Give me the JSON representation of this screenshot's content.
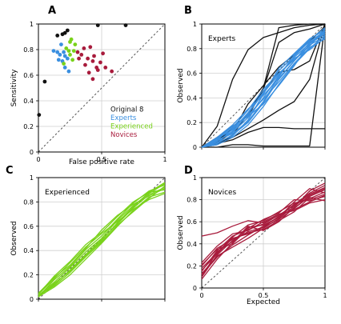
{
  "figure": {
    "panels": {
      "A": {
        "letter": "A"
      },
      "B": {
        "letter": "B"
      },
      "C": {
        "letter": "C"
      },
      "D": {
        "letter": "D"
      }
    },
    "colors": {
      "original8": "#111111",
      "experts": "#3a8fe0",
      "experienced": "#79d21a",
      "novices": "#a81b3c",
      "frame": "#000000",
      "grid": "#cfcfcf",
      "diagonal": "#555555"
    }
  },
  "chart_data": [
    {
      "id": "A",
      "type": "scatter",
      "title": "",
      "xlabel": "False positive rate",
      "ylabel": "Sensitivity",
      "xlim": [
        0,
        1
      ],
      "ylim": [
        0,
        1
      ],
      "xticks": [
        "0",
        "0.5",
        "1"
      ],
      "yticks": [
        "0",
        "0.2",
        "0.4",
        "0.6",
        "0.8",
        "1"
      ],
      "grid": true,
      "diagonal": true,
      "legend": {
        "position": "bottom-right",
        "entries": [
          {
            "label": "Original 8",
            "color": "#111111"
          },
          {
            "label": "Experts",
            "color": "#3a8fe0"
          },
          {
            "label": "Experienced",
            "color": "#79d21a"
          },
          {
            "label": "Novices",
            "color": "#a81b3c"
          }
        ]
      },
      "series": [
        {
          "name": "Original 8",
          "color": "#111111",
          "points": [
            [
              0.005,
              0.29
            ],
            [
              0.05,
              0.55
            ],
            [
              0.15,
              0.91
            ],
            [
              0.19,
              0.92
            ],
            [
              0.21,
              0.93
            ],
            [
              0.23,
              0.95
            ],
            [
              0.47,
              0.99
            ],
            [
              0.69,
              0.99
            ]
          ]
        },
        {
          "name": "Experts",
          "color": "#3a8fe0",
          "points": [
            [
              0.12,
              0.79
            ],
            [
              0.15,
              0.78
            ],
            [
              0.18,
              0.84
            ],
            [
              0.16,
              0.72
            ],
            [
              0.19,
              0.71
            ],
            [
              0.2,
              0.78
            ],
            [
              0.21,
              0.75
            ],
            [
              0.23,
              0.73
            ],
            [
              0.24,
              0.63
            ],
            [
              0.21,
              0.66
            ],
            [
              0.17,
              0.76
            ]
          ]
        },
        {
          "name": "Experienced",
          "color": "#79d21a",
          "points": [
            [
              0.22,
              0.81
            ],
            [
              0.24,
              0.79
            ],
            [
              0.25,
              0.86
            ],
            [
              0.26,
              0.88
            ],
            [
              0.25,
              0.76
            ],
            [
              0.28,
              0.79
            ],
            [
              0.27,
              0.72
            ],
            [
              0.2,
              0.69
            ],
            [
              0.29,
              0.84
            ]
          ]
        },
        {
          "name": "Novices",
          "color": "#a81b3c",
          "points": [
            [
              0.31,
              0.78
            ],
            [
              0.32,
              0.73
            ],
            [
              0.34,
              0.76
            ],
            [
              0.36,
              0.81
            ],
            [
              0.37,
              0.68
            ],
            [
              0.39,
              0.73
            ],
            [
              0.4,
              0.62
            ],
            [
              0.41,
              0.82
            ],
            [
              0.43,
              0.71
            ],
            [
              0.44,
              0.75
            ],
            [
              0.46,
              0.66
            ],
            [
              0.47,
              0.64
            ],
            [
              0.49,
              0.7
            ],
            [
              0.51,
              0.77
            ],
            [
              0.53,
              0.66
            ],
            [
              0.43,
              0.57
            ],
            [
              0.58,
              0.63
            ]
          ]
        }
      ]
    },
    {
      "id": "B",
      "type": "line",
      "title": "",
      "annotation": "Experts",
      "xlabel": "",
      "ylabel": "Observed",
      "xlim": [
        0,
        1
      ],
      "ylim": [
        0,
        1
      ],
      "xticks": [
        "",
        "",
        ""
      ],
      "yticks": [
        "0",
        "0.2",
        "0.4",
        "0.6",
        "0.8",
        "1"
      ],
      "grid": true,
      "diagonal": true,
      "x": [
        0,
        0.125,
        0.25,
        0.375,
        0.5,
        0.625,
        0.75,
        0.875,
        1
      ],
      "series": [
        {
          "group": "Original 8",
          "color": "#111111",
          "values": [
            0.0,
            0.17,
            0.55,
            0.79,
            0.89,
            0.93,
            0.97,
            0.99,
            1.0
          ]
        },
        {
          "group": "Original 8",
          "color": "#111111",
          "values": [
            0.0,
            0.08,
            0.17,
            0.25,
            0.47,
            0.85,
            0.93,
            0.96,
            1.0
          ]
        },
        {
          "group": "Original 8",
          "color": "#111111",
          "values": [
            0.0,
            0.05,
            0.15,
            0.27,
            0.45,
            0.61,
            0.63,
            0.7,
            1.0
          ]
        },
        {
          "group": "Original 8",
          "color": "#111111",
          "values": [
            0.0,
            0.02,
            0.1,
            0.27,
            0.48,
            0.97,
            0.99,
            1.0,
            1.0
          ]
        },
        {
          "group": "Original 8",
          "color": "#111111",
          "values": [
            0.0,
            0.03,
            0.06,
            0.12,
            0.16,
            0.16,
            0.15,
            0.15,
            0.15
          ]
        },
        {
          "group": "Original 8",
          "color": "#111111",
          "values": [
            0.0,
            0.04,
            0.08,
            0.15,
            0.22,
            0.3,
            0.37,
            0.55,
            1.0
          ]
        },
        {
          "group": "Original 8",
          "color": "#111111",
          "values": [
            0.0,
            0.0,
            0.02,
            0.02,
            0.01,
            0.01,
            0.01,
            0.01,
            1.0
          ]
        },
        {
          "group": "Original 8",
          "color": "#111111",
          "values": [
            0.0,
            0.04,
            0.12,
            0.35,
            0.5,
            0.65,
            0.75,
            0.86,
            0.98
          ]
        },
        {
          "group": "Experts",
          "color": "#3a8fe0",
          "values": [
            0.0,
            0.07,
            0.14,
            0.28,
            0.45,
            0.62,
            0.74,
            0.86,
            0.94
          ]
        },
        {
          "group": "Experts",
          "color": "#3a8fe0",
          "values": [
            0.0,
            0.05,
            0.12,
            0.24,
            0.4,
            0.58,
            0.73,
            0.84,
            0.92
          ]
        },
        {
          "group": "Experts",
          "color": "#3a8fe0",
          "values": [
            0.0,
            0.03,
            0.1,
            0.2,
            0.36,
            0.55,
            0.7,
            0.83,
            0.9
          ]
        },
        {
          "group": "Experts",
          "color": "#3a8fe0",
          "values": [
            0.0,
            0.06,
            0.16,
            0.3,
            0.47,
            0.6,
            0.71,
            0.82,
            0.96
          ]
        },
        {
          "group": "Experts",
          "color": "#3a8fe0",
          "values": [
            0.0,
            0.04,
            0.09,
            0.22,
            0.43,
            0.64,
            0.76,
            0.88,
            0.95
          ]
        },
        {
          "group": "Experts",
          "color": "#3a8fe0",
          "values": [
            0.0,
            0.08,
            0.18,
            0.31,
            0.42,
            0.56,
            0.7,
            0.85,
            0.93
          ]
        },
        {
          "group": "Experts",
          "color": "#3a8fe0",
          "values": [
            0.0,
            0.02,
            0.08,
            0.18,
            0.33,
            0.51,
            0.67,
            0.8,
            0.91
          ]
        },
        {
          "group": "Experts",
          "color": "#3a8fe0",
          "values": [
            0.0,
            0.05,
            0.13,
            0.26,
            0.39,
            0.53,
            0.68,
            0.81,
            0.88
          ]
        },
        {
          "group": "Experts",
          "color": "#3a8fe0",
          "values": [
            0.0,
            0.06,
            0.11,
            0.21,
            0.37,
            0.57,
            0.75,
            0.87,
            0.97
          ]
        },
        {
          "group": "Experts",
          "color": "#3a8fe0",
          "values": [
            0.0,
            0.03,
            0.15,
            0.27,
            0.44,
            0.59,
            0.72,
            0.79,
            0.89
          ]
        },
        {
          "group": "Experts",
          "color": "#3a8fe0",
          "values": [
            0.0,
            0.07,
            0.17,
            0.25,
            0.35,
            0.5,
            0.66,
            0.84,
            0.94
          ]
        }
      ]
    },
    {
      "id": "C",
      "type": "line",
      "title": "",
      "annotation": "Experienced",
      "xlabel": "",
      "ylabel": "Observed",
      "xlim": [
        0,
        1
      ],
      "ylim": [
        0,
        1
      ],
      "xticks": [
        "",
        "",
        ""
      ],
      "yticks": [
        "0",
        "0.2",
        "0.4",
        "0.6",
        "0.8",
        "1"
      ],
      "grid": true,
      "diagonal": true,
      "x": [
        0,
        0.125,
        0.25,
        0.375,
        0.5,
        0.625,
        0.75,
        0.875,
        1
      ],
      "series": [
        {
          "color": "#79d21a",
          "values": [
            0.02,
            0.16,
            0.27,
            0.41,
            0.52,
            0.66,
            0.79,
            0.89,
            0.94
          ]
        },
        {
          "color": "#79d21a",
          "values": [
            0.03,
            0.12,
            0.24,
            0.37,
            0.49,
            0.62,
            0.75,
            0.86,
            0.92
          ]
        },
        {
          "color": "#79d21a",
          "values": [
            0.04,
            0.19,
            0.31,
            0.45,
            0.55,
            0.68,
            0.8,
            0.88,
            0.9
          ]
        },
        {
          "color": "#79d21a",
          "values": [
            0.02,
            0.1,
            0.2,
            0.33,
            0.46,
            0.6,
            0.73,
            0.84,
            0.88
          ]
        },
        {
          "color": "#79d21a",
          "values": [
            0.03,
            0.14,
            0.26,
            0.39,
            0.5,
            0.65,
            0.77,
            0.87,
            0.95
          ]
        },
        {
          "color": "#79d21a",
          "values": [
            0.05,
            0.18,
            0.28,
            0.42,
            0.57,
            0.69,
            0.78,
            0.85,
            0.91
          ]
        },
        {
          "color": "#79d21a",
          "values": [
            0.02,
            0.13,
            0.23,
            0.36,
            0.48,
            0.63,
            0.76,
            0.88,
            0.96
          ]
        },
        {
          "color": "#79d21a",
          "values": [
            0.04,
            0.17,
            0.3,
            0.43,
            0.54,
            0.64,
            0.74,
            0.82,
            0.87
          ]
        },
        {
          "color": "#79d21a",
          "values": [
            0.03,
            0.11,
            0.22,
            0.35,
            0.47,
            0.61,
            0.72,
            0.83,
            0.93
          ]
        }
      ]
    },
    {
      "id": "D",
      "type": "line",
      "title": "",
      "annotation": "Novices",
      "xlabel": "Expected",
      "ylabel": "Observed",
      "xlim": [
        0,
        1
      ],
      "ylim": [
        0,
        1
      ],
      "xticks": [
        "0",
        "0.5",
        "1"
      ],
      "yticks": [
        "0",
        "0.2",
        "0.4",
        "0.6",
        "0.8",
        "1"
      ],
      "grid": true,
      "diagonal": true,
      "x": [
        0,
        0.125,
        0.25,
        0.375,
        0.5,
        0.625,
        0.75,
        0.875,
        1
      ],
      "series": [
        {
          "color": "#a81b3c",
          "values": [
            0.1,
            0.3,
            0.43,
            0.51,
            0.55,
            0.62,
            0.72,
            0.84,
            0.9
          ]
        },
        {
          "color": "#a81b3c",
          "values": [
            0.15,
            0.34,
            0.47,
            0.53,
            0.58,
            0.66,
            0.75,
            0.86,
            0.93
          ]
        },
        {
          "color": "#a81b3c",
          "values": [
            0.47,
            0.5,
            0.56,
            0.61,
            0.59,
            0.66,
            0.71,
            0.78,
            0.84
          ]
        },
        {
          "color": "#a81b3c",
          "values": [
            0.12,
            0.28,
            0.39,
            0.48,
            0.56,
            0.64,
            0.76,
            0.81,
            0.87
          ]
        },
        {
          "color": "#a81b3c",
          "values": [
            0.2,
            0.36,
            0.44,
            0.5,
            0.53,
            0.61,
            0.69,
            0.82,
            0.79
          ]
        },
        {
          "color": "#a81b3c",
          "values": [
            0.08,
            0.26,
            0.41,
            0.56,
            0.52,
            0.6,
            0.73,
            0.88,
            0.95
          ]
        },
        {
          "color": "#a81b3c",
          "values": [
            0.18,
            0.32,
            0.46,
            0.57,
            0.61,
            0.69,
            0.77,
            0.8,
            0.85
          ]
        },
        {
          "color": "#a81b3c",
          "values": [
            0.13,
            0.29,
            0.37,
            0.45,
            0.54,
            0.63,
            0.74,
            0.85,
            0.91
          ]
        },
        {
          "color": "#a81b3c",
          "values": [
            0.23,
            0.38,
            0.49,
            0.52,
            0.6,
            0.67,
            0.7,
            0.77,
            0.8
          ]
        },
        {
          "color": "#a81b3c",
          "values": [
            0.1,
            0.33,
            0.42,
            0.55,
            0.57,
            0.64,
            0.78,
            0.9,
            0.86
          ]
        },
        {
          "color": "#a81b3c",
          "values": [
            0.16,
            0.31,
            0.45,
            0.49,
            0.55,
            0.65,
            0.72,
            0.83,
            0.89
          ]
        },
        {
          "color": "#a81b3c",
          "values": [
            0.21,
            0.35,
            0.4,
            0.54,
            0.62,
            0.68,
            0.8,
            0.79,
            0.83
          ]
        }
      ]
    }
  ]
}
